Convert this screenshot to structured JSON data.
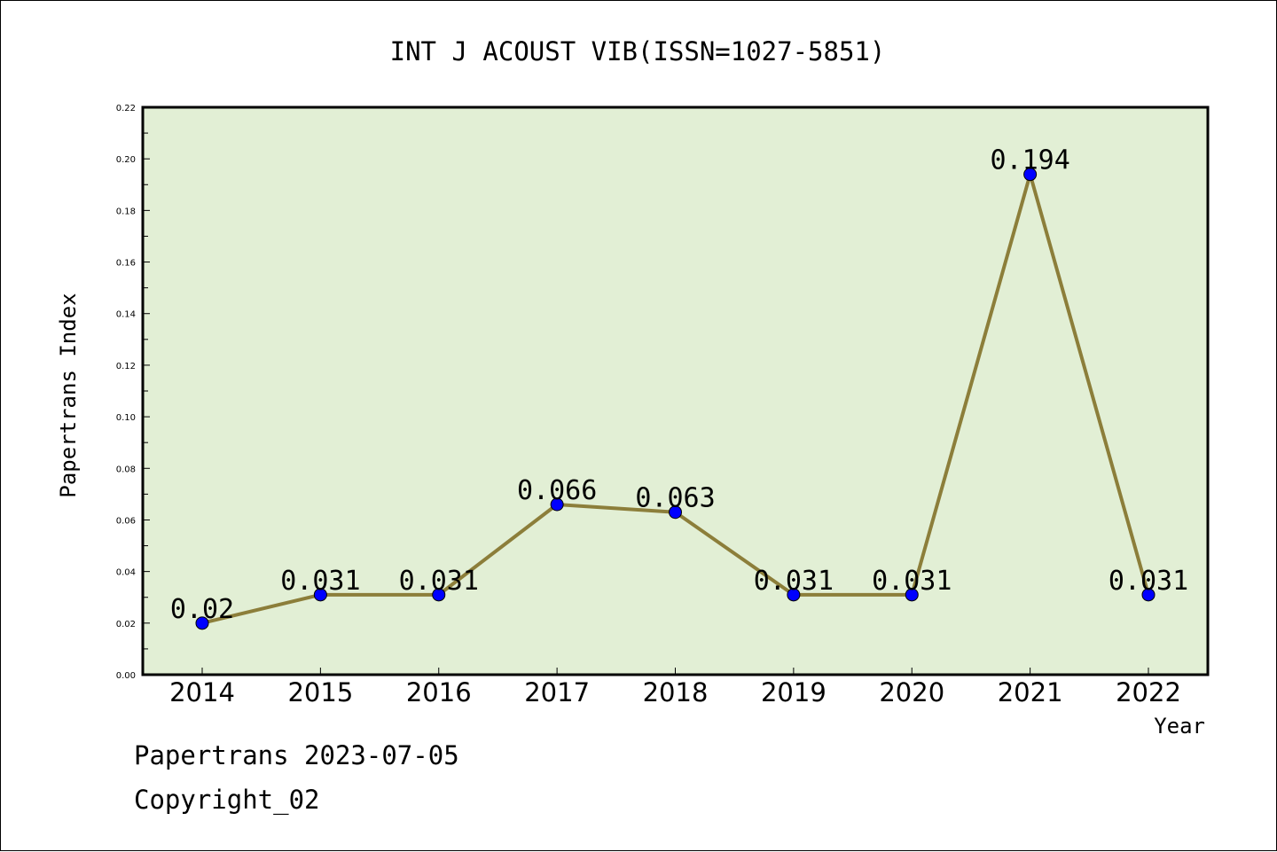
{
  "chart_data": {
    "type": "line",
    "title": "INT J ACOUST VIB(ISSN=1027-5851)",
    "xlabel": "Year",
    "ylabel": "Papertrans Index",
    "categories": [
      "2014",
      "2015",
      "2016",
      "2017",
      "2018",
      "2019",
      "2020",
      "2021",
      "2022"
    ],
    "series": [
      {
        "values": [
          0.02,
          0.031,
          0.031,
          0.066,
          0.063,
          0.031,
          0.031,
          0.194,
          0.031
        ]
      }
    ],
    "data_labels": [
      "0.02",
      "0.031",
      "0.031",
      "0.066",
      "0.063",
      "0.031",
      "0.031",
      "0.194",
      "0.031"
    ],
    "ylim": [
      0,
      0.22
    ],
    "yticks": [
      "0.00",
      "0.02",
      "0.04",
      "0.06",
      "0.08",
      "0.10",
      "0.12",
      "0.14",
      "0.16",
      "0.18",
      "0.20",
      "0.22"
    ],
    "grid": false,
    "legend": "none",
    "colors": {
      "plot_background": "#e2efd5",
      "line": "#8c7e3a",
      "marker": "#0000ff",
      "axes": "#000000"
    }
  },
  "footer": {
    "date_text": "Papertrans 2023-07-05",
    "copyright_text": "Copyright_02"
  }
}
